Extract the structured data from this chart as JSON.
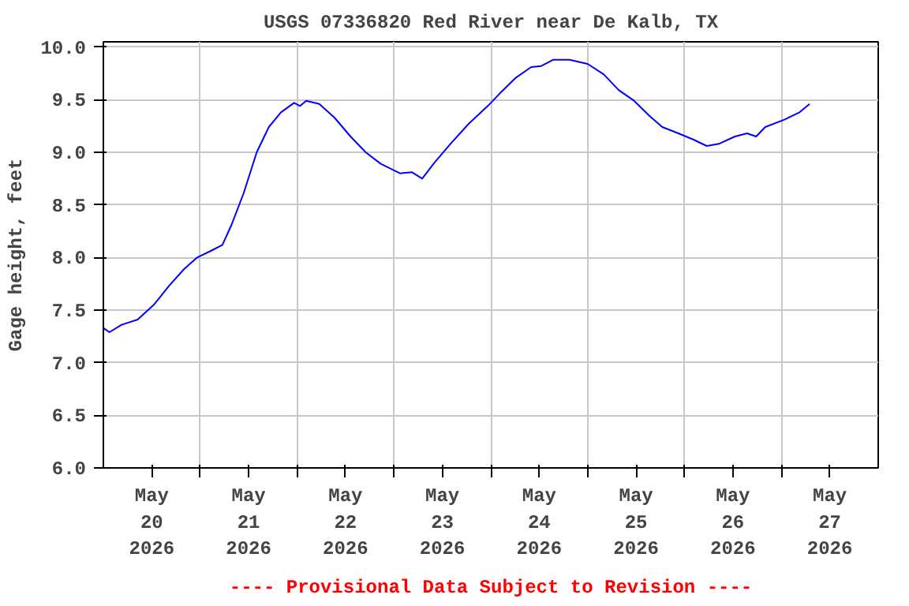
{
  "chart_data": {
    "type": "line",
    "title": "USGS 07336820 Red River near De Kalb, TX",
    "ylabel": "Gage height, feet",
    "annotations": [
      "---- Provisional Data Subject to Revision ----"
    ],
    "x": [
      "2026-05-20T00:00",
      "2026-05-20T01:30",
      "2026-05-20T04:30",
      "2026-05-20T08:30",
      "2026-05-20T12:30",
      "2026-05-20T16:15",
      "2026-05-20T20:00",
      "2026-05-20T23:15",
      "2026-05-21T03:00",
      "2026-05-21T05:30",
      "2026-05-21T07:45",
      "2026-05-21T10:45",
      "2026-05-21T14:00",
      "2026-05-21T17:00",
      "2026-05-21T20:00",
      "2026-05-21T23:15",
      "2026-05-22T00:45",
      "2026-05-22T02:15",
      "2026-05-22T05:30",
      "2026-05-22T09:15",
      "2026-05-22T13:15",
      "2026-05-22T17:00",
      "2026-05-22T20:45",
      "2026-05-23T01:30",
      "2026-05-23T04:30",
      "2026-05-23T07:00",
      "2026-05-23T10:00",
      "2026-05-23T14:00",
      "2026-05-23T18:30",
      "2026-05-23T23:15",
      "2026-05-24T02:15",
      "2026-05-24T06:15",
      "2026-05-24T10:00",
      "2026-05-24T12:30",
      "2026-05-24T15:30",
      "2026-05-24T19:30",
      "2026-05-25T00:00",
      "2026-05-25T04:00",
      "2026-05-25T07:45",
      "2026-05-25T11:30",
      "2026-05-25T15:30",
      "2026-05-25T18:30",
      "2026-05-25T22:30",
      "2026-05-26T02:15",
      "2026-05-26T05:30",
      "2026-05-26T08:30",
      "2026-05-26T12:30",
      "2026-05-26T15:30",
      "2026-05-26T17:45",
      "2026-05-26T20:00",
      "2026-05-27T00:45",
      "2026-05-27T04:30",
      "2026-05-27T07:00"
    ],
    "series": [
      {
        "color": "#0000ff",
        "values": [
          7.33,
          7.29,
          7.36,
          7.41,
          7.55,
          7.73,
          7.89,
          8.0,
          8.07,
          8.12,
          8.31,
          8.61,
          9.0,
          9.24,
          9.38,
          9.47,
          9.44,
          9.49,
          9.46,
          9.33,
          9.15,
          9.0,
          8.89,
          8.8,
          8.81,
          8.75,
          8.9,
          9.08,
          9.27,
          9.44,
          9.56,
          9.71,
          9.81,
          9.82,
          9.88,
          9.88,
          9.84,
          9.74,
          9.59,
          9.49,
          9.34,
          9.24,
          9.18,
          9.12,
          9.06,
          9.08,
          9.15,
          9.18,
          9.15,
          9.24,
          9.31,
          9.38,
          9.46
        ]
      }
    ],
    "xlim": [
      "2026-05-20T00:00",
      "2026-05-28T00:00"
    ],
    "xticks": [
      {
        "value": "2026-05-20T12:00",
        "label": "May\n20\n2026"
      },
      {
        "value": "2026-05-21T00:00",
        "label": null
      },
      {
        "value": "2026-05-21T12:00",
        "label": "May\n21\n2026"
      },
      {
        "value": "2026-05-22T00:00",
        "label": null
      },
      {
        "value": "2026-05-22T12:00",
        "label": "May\n22\n2026"
      },
      {
        "value": "2026-05-23T00:00",
        "label": null
      },
      {
        "value": "2026-05-23T12:00",
        "label": "May\n23\n2026"
      },
      {
        "value": "2026-05-24T00:00",
        "label": null
      },
      {
        "value": "2026-05-24T12:00",
        "label": "May\n24\n2026"
      },
      {
        "value": "2026-05-25T00:00",
        "label": null
      },
      {
        "value": "2026-05-25T12:00",
        "label": "May\n25\n2026"
      },
      {
        "value": "2026-05-26T00:00",
        "label": null
      },
      {
        "value": "2026-05-26T12:00",
        "label": "May\n26\n2026"
      },
      {
        "value": "2026-05-27T00:00",
        "label": null
      },
      {
        "value": "2026-05-27T12:00",
        "label": "May\n27\n2026"
      }
    ],
    "ylim": [
      6.0,
      10.05
    ],
    "yticks": [
      {
        "value": 6,
        "label": "6.0"
      },
      {
        "value": 6.5,
        "label": "6.5"
      },
      {
        "value": 7,
        "label": "7.0"
      },
      {
        "value": 7.5,
        "label": "7.5"
      },
      {
        "value": 8,
        "label": "8.0"
      },
      {
        "value": 8.5,
        "label": "8.5"
      },
      {
        "value": 9,
        "label": "9.0"
      },
      {
        "value": 9.5,
        "label": "9.5"
      },
      {
        "value": 10,
        "label": "10.0"
      }
    ],
    "grid": true,
    "line_style": "solid",
    "marker": "none"
  }
}
